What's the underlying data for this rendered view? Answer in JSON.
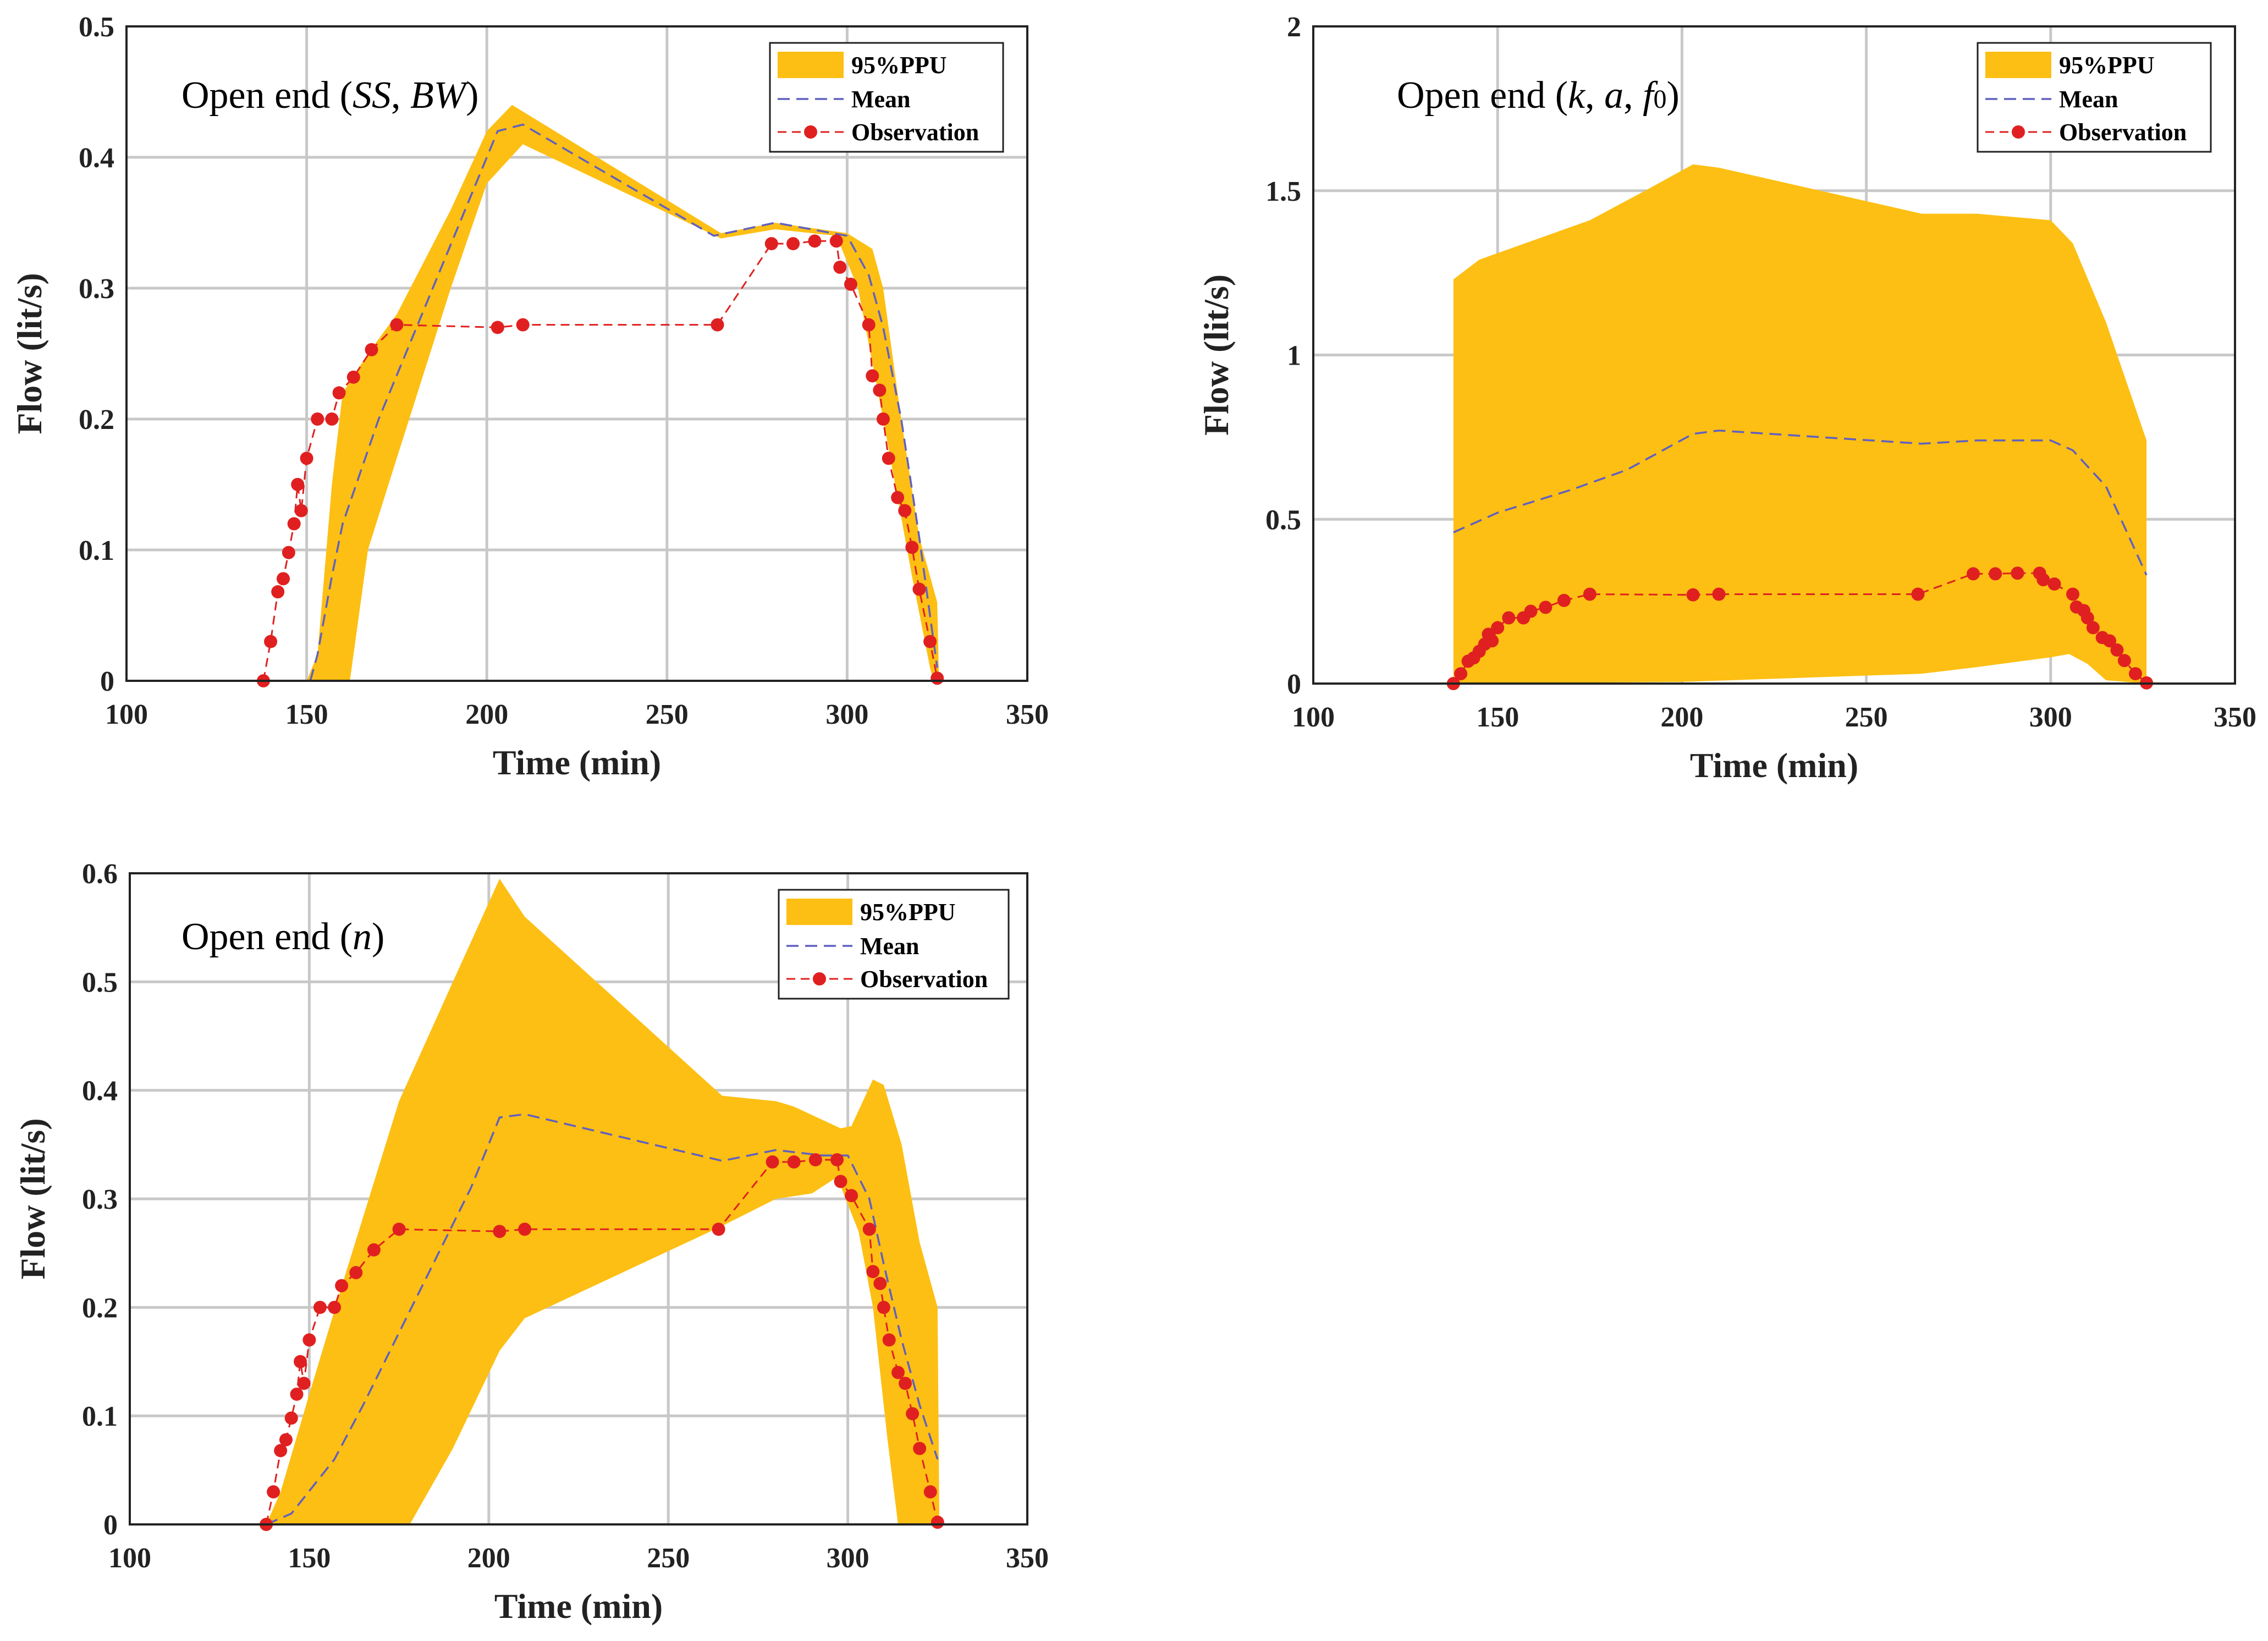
{
  "chart_data": [
    {
      "type": "area",
      "annotation_parts": [
        {
          "text": "Open end (",
          "italic": false
        },
        {
          "text": "SS",
          "italic": true
        },
        {
          "text": ", ",
          "italic": false
        },
        {
          "text": "BW",
          "italic": true
        },
        {
          "text": ")",
          "italic": false
        }
      ],
      "xlabel": "Time (min)",
      "ylabel": "Flow (lit/s)",
      "xlim": [
        100,
        350
      ],
      "ylim": [
        0,
        0.5
      ],
      "xticks": [
        100,
        150,
        200,
        250,
        300,
        350
      ],
      "yticks": [
        0,
        0.1,
        0.2,
        0.3,
        0.4,
        0.5
      ],
      "ytick_labels": [
        "0",
        "0.1",
        "0.2",
        "0.3",
        "0.4",
        "0.5"
      ],
      "legend_position": "top-right",
      "legend": [
        "95%PPU",
        "Mean",
        "Observation"
      ],
      "colors": {
        "band": "#FDBF13",
        "mean": "#6060c0",
        "observation": "#e02020"
      },
      "band": {
        "upper": [
          [
            150,
            0
          ],
          [
            153,
            0.02
          ],
          [
            157,
            0.15
          ],
          [
            160,
            0.22
          ],
          [
            167,
            0.25
          ],
          [
            175,
            0.28
          ],
          [
            190,
            0.36
          ],
          [
            200,
            0.42
          ],
          [
            207,
            0.44
          ],
          [
            210,
            0.435
          ],
          [
            265,
            0.342
          ],
          [
            280,
            0.35
          ],
          [
            300,
            0.342
          ],
          [
            307,
            0.33
          ],
          [
            310,
            0.3
          ],
          [
            315,
            0.2
          ],
          [
            320,
            0.11
          ],
          [
            325,
            0.06
          ],
          [
            325.5,
            0
          ]
        ],
        "lower": [
          [
            162,
            0
          ],
          [
            167,
            0.1
          ],
          [
            175,
            0.17
          ],
          [
            190,
            0.3
          ],
          [
            200,
            0.38
          ],
          [
            210,
            0.41
          ],
          [
            265,
            0.338
          ],
          [
            280,
            0.345
          ],
          [
            297,
            0.34
          ],
          [
            303,
            0.3
          ],
          [
            310,
            0.2
          ],
          [
            318,
            0.08
          ],
          [
            323,
            0.01
          ],
          [
            324,
            0
          ]
        ]
      },
      "mean": [
        [
          151,
          0
        ],
        [
          153,
          0.02
        ],
        [
          157,
          0.08
        ],
        [
          160,
          0.12
        ],
        [
          170,
          0.2
        ],
        [
          185,
          0.3
        ],
        [
          203,
          0.42
        ],
        [
          210,
          0.425
        ],
        [
          263,
          0.34
        ],
        [
          280,
          0.35
        ],
        [
          300,
          0.34
        ],
        [
          306,
          0.31
        ],
        [
          310,
          0.27
        ],
        [
          315,
          0.2
        ],
        [
          320,
          0.11
        ],
        [
          325,
          0.01
        ]
      ],
      "observation": [
        [
          138,
          0
        ],
        [
          140,
          0.03
        ],
        [
          142,
          0.068
        ],
        [
          143.5,
          0.078
        ],
        [
          145,
          0.098
        ],
        [
          146.5,
          0.12
        ],
        [
          147.5,
          0.15
        ],
        [
          148.5,
          0.13
        ],
        [
          150,
          0.17
        ],
        [
          153,
          0.2
        ],
        [
          157,
          0.2
        ],
        [
          159,
          0.22
        ],
        [
          163,
          0.232
        ],
        [
          168,
          0.253
        ],
        [
          175,
          0.272
        ],
        [
          203,
          0.27
        ],
        [
          210,
          0.272
        ],
        [
          264,
          0.272
        ],
        [
          279,
          0.334
        ],
        [
          285,
          0.334
        ],
        [
          291,
          0.336
        ],
        [
          297,
          0.336
        ],
        [
          298,
          0.316
        ],
        [
          301,
          0.303
        ],
        [
          306,
          0.272
        ],
        [
          307,
          0.233
        ],
        [
          309,
          0.222
        ],
        [
          310,
          0.2
        ],
        [
          311.5,
          0.17
        ],
        [
          314,
          0.14
        ],
        [
          316,
          0.13
        ],
        [
          318,
          0.102
        ],
        [
          320,
          0.07
        ],
        [
          323,
          0.03
        ],
        [
          325,
          0.002
        ]
      ]
    },
    {
      "type": "area",
      "annotation_parts": [
        {
          "text": "Open end (",
          "italic": false
        },
        {
          "text": "k",
          "italic": true
        },
        {
          "text": ", ",
          "italic": false
        },
        {
          "text": "a",
          "italic": true
        },
        {
          "text": ", ",
          "italic": false
        },
        {
          "text": "f",
          "italic": true
        },
        {
          "text": "0",
          "italic": false
        },
        {
          "text": ")",
          "italic": false
        }
      ],
      "xlabel": "Time (min)",
      "ylabel": "Flow (lit/s)",
      "xlim": [
        100,
        350
      ],
      "ylim": [
        0,
        2
      ],
      "xticks": [
        100,
        150,
        200,
        250,
        300,
        350
      ],
      "yticks": [
        0,
        0.5,
        1,
        1.5,
        2
      ],
      "ytick_labels": [
        "0",
        "0.5",
        "1",
        "1.5",
        "2"
      ],
      "legend_position": "top-right",
      "legend": [
        "95%PPU",
        "Mean",
        "Observation"
      ],
      "colors": {
        "band": "#FDBF13",
        "mean": "#6060c0",
        "observation": "#e02020"
      },
      "band": {
        "upper": [
          [
            138,
            0
          ],
          [
            138,
            1.23
          ],
          [
            145,
            1.29
          ],
          [
            150,
            1.31
          ],
          [
            160,
            1.35
          ],
          [
            175,
            1.41
          ],
          [
            190,
            1.5
          ],
          [
            203,
            1.58
          ],
          [
            210,
            1.57
          ],
          [
            265,
            1.43
          ],
          [
            280,
            1.43
          ],
          [
            300,
            1.41
          ],
          [
            306,
            1.34
          ],
          [
            315,
            1.1
          ],
          [
            326,
            0.74
          ],
          [
            326,
            0
          ]
        ],
        "lower": [
          [
            138,
            0
          ],
          [
            200,
            0.005
          ],
          [
            265,
            0.03
          ],
          [
            280,
            0.05
          ],
          [
            300,
            0.08
          ],
          [
            305,
            0.09
          ],
          [
            310,
            0.06
          ],
          [
            315,
            0.01
          ],
          [
            326,
            0
          ]
        ]
      },
      "mean": [
        [
          138,
          0.46
        ],
        [
          150,
          0.52
        ],
        [
          170,
          0.59
        ],
        [
          185,
          0.65
        ],
        [
          203,
          0.76
        ],
        [
          210,
          0.77
        ],
        [
          265,
          0.73
        ],
        [
          280,
          0.74
        ],
        [
          300,
          0.74
        ],
        [
          306,
          0.71
        ],
        [
          315,
          0.6
        ],
        [
          326,
          0.33
        ]
      ],
      "observation": [
        [
          138,
          0
        ],
        [
          140,
          0.03
        ],
        [
          142,
          0.068
        ],
        [
          143.5,
          0.078
        ],
        [
          145,
          0.098
        ],
        [
          146.5,
          0.12
        ],
        [
          147.5,
          0.15
        ],
        [
          148.5,
          0.13
        ],
        [
          150,
          0.17
        ],
        [
          153,
          0.2
        ],
        [
          157,
          0.2
        ],
        [
          159,
          0.22
        ],
        [
          163,
          0.232
        ],
        [
          168,
          0.253
        ],
        [
          175,
          0.272
        ],
        [
          203,
          0.27
        ],
        [
          210,
          0.272
        ],
        [
          264,
          0.272
        ],
        [
          279,
          0.334
        ],
        [
          285,
          0.334
        ],
        [
          291,
          0.336
        ],
        [
          297,
          0.336
        ],
        [
          298,
          0.316
        ],
        [
          301,
          0.303
        ],
        [
          306,
          0.272
        ],
        [
          307,
          0.233
        ],
        [
          309,
          0.222
        ],
        [
          310,
          0.2
        ],
        [
          311.5,
          0.17
        ],
        [
          314,
          0.14
        ],
        [
          316,
          0.13
        ],
        [
          318,
          0.102
        ],
        [
          320,
          0.07
        ],
        [
          323,
          0.03
        ],
        [
          326,
          0.002
        ]
      ]
    },
    {
      "type": "area",
      "annotation_parts": [
        {
          "text": "Open end (",
          "italic": false
        },
        {
          "text": "n",
          "italic": true
        },
        {
          "text": ")",
          "italic": false
        }
      ],
      "xlabel": "Time (min)",
      "ylabel": "Flow (lit/s)",
      "xlim": [
        100,
        350
      ],
      "ylim": [
        0,
        0.6
      ],
      "xticks": [
        100,
        150,
        200,
        250,
        300,
        350
      ],
      "yticks": [
        0,
        0.1,
        0.2,
        0.3,
        0.4,
        0.5,
        0.6
      ],
      "ytick_labels": [
        "0",
        "0.1",
        "0.2",
        "0.3",
        "0.4",
        "0.5",
        "0.6"
      ],
      "legend_position": "top-right",
      "legend": [
        "95%PPU",
        "Mean",
        "Observation"
      ],
      "colors": {
        "band": "#FDBF13",
        "mean": "#6060c0",
        "observation": "#e02020"
      },
      "band": {
        "upper": [
          [
            138,
            0
          ],
          [
            142,
            0.03
          ],
          [
            150,
            0.12
          ],
          [
            160,
            0.23
          ],
          [
            175,
            0.39
          ],
          [
            190,
            0.5
          ],
          [
            203,
            0.595
          ],
          [
            210,
            0.56
          ],
          [
            265,
            0.395
          ],
          [
            280,
            0.39
          ],
          [
            285,
            0.385
          ],
          [
            298,
            0.365
          ],
          [
            301,
            0.367
          ],
          [
            307,
            0.41
          ],
          [
            310,
            0.405
          ],
          [
            315,
            0.35
          ],
          [
            320,
            0.26
          ],
          [
            325,
            0.2
          ],
          [
            325.5,
            0
          ]
        ],
        "lower": [
          [
            178,
            0
          ],
          [
            190,
            0.07
          ],
          [
            203,
            0.16
          ],
          [
            210,
            0.19
          ],
          [
            265,
            0.275
          ],
          [
            280,
            0.3
          ],
          [
            290,
            0.305
          ],
          [
            297,
            0.32
          ],
          [
            303,
            0.27
          ],
          [
            307,
            0.2
          ],
          [
            311,
            0.08
          ],
          [
            314,
            0
          ]
        ]
      },
      "mean": [
        [
          138,
          0
        ],
        [
          145,
          0.01
        ],
        [
          157,
          0.06
        ],
        [
          165,
          0.11
        ],
        [
          180,
          0.21
        ],
        [
          195,
          0.31
        ],
        [
          203,
          0.375
        ],
        [
          210,
          0.378
        ],
        [
          265,
          0.335
        ],
        [
          280,
          0.345
        ],
        [
          293,
          0.34
        ],
        [
          300,
          0.34
        ],
        [
          306,
          0.3
        ],
        [
          310,
          0.24
        ],
        [
          315,
          0.17
        ],
        [
          320,
          0.11
        ],
        [
          325,
          0.06
        ]
      ],
      "observation": [
        [
          138,
          0
        ],
        [
          140,
          0.03
        ],
        [
          142,
          0.068
        ],
        [
          143.5,
          0.078
        ],
        [
          145,
          0.098
        ],
        [
          146.5,
          0.12
        ],
        [
          147.5,
          0.15
        ],
        [
          148.5,
          0.13
        ],
        [
          150,
          0.17
        ],
        [
          153,
          0.2
        ],
        [
          157,
          0.2
        ],
        [
          159,
          0.22
        ],
        [
          163,
          0.232
        ],
        [
          168,
          0.253
        ],
        [
          175,
          0.272
        ],
        [
          203,
          0.27
        ],
        [
          210,
          0.272
        ],
        [
          264,
          0.272
        ],
        [
          279,
          0.334
        ],
        [
          285,
          0.334
        ],
        [
          291,
          0.336
        ],
        [
          297,
          0.336
        ],
        [
          298,
          0.316
        ],
        [
          301,
          0.303
        ],
        [
          306,
          0.272
        ],
        [
          307,
          0.233
        ],
        [
          309,
          0.222
        ],
        [
          310,
          0.2
        ],
        [
          311.5,
          0.17
        ],
        [
          314,
          0.14
        ],
        [
          316,
          0.13
        ],
        [
          318,
          0.102
        ],
        [
          320,
          0.07
        ],
        [
          323,
          0.03
        ],
        [
          325,
          0.002
        ]
      ]
    }
  ]
}
